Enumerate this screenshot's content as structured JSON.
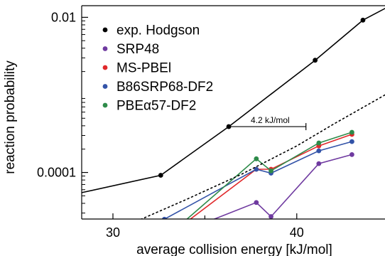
{
  "chart_data": {
    "type": "line",
    "xlabel": "average collision energy [kJ/mol]",
    "ylabel": "reaction probability",
    "xlim": [
      28.3,
      44.8
    ],
    "ylim_log10": [
      -4.6,
      -1.85
    ],
    "y_scale": "log",
    "x_ticks": [
      30,
      40
    ],
    "x_ticks_minor": [
      35
    ],
    "y_ticks": [
      {
        "value": 0.01,
        "label": "0.01"
      },
      {
        "value": 0.0001,
        "label": "0.0001"
      }
    ],
    "legend_placement": "top-left",
    "grid": false,
    "series": [
      {
        "name": "exp. Hodgson",
        "color": "#000000",
        "style": "solid",
        "x": [
          28.3,
          32.6,
          36.3,
          41.0,
          43.6,
          44.8
        ],
        "y": [
          5.5e-05,
          9.2e-05,
          0.00039,
          0.0028,
          0.0092,
          0.013
        ],
        "markers": [
          false,
          true,
          true,
          true,
          true,
          false
        ]
      },
      {
        "name": "SRP48",
        "color": "#6f3aa0",
        "style": "solid",
        "x": [
          32.8,
          37.8,
          38.6,
          41.2,
          43.0
        ],
        "y": [
          1.4e-05,
          4.1e-05,
          2.7e-05,
          0.00013,
          0.00017
        ],
        "markers": [
          true,
          true,
          true,
          true,
          true
        ]
      },
      {
        "name": "MS-PBEl",
        "color": "#e0292b",
        "style": "solid",
        "x": [
          32.8,
          37.8,
          38.6,
          41.2,
          43.0
        ],
        "y": [
          1.4e-05,
          0.00011,
          0.00011,
          0.00022,
          0.00031
        ],
        "markers": [
          true,
          true,
          true,
          true,
          true
        ]
      },
      {
        "name": "B86SRP68-DF2",
        "color": "#3353a8",
        "style": "solid",
        "x": [
          32.8,
          37.8,
          38.6,
          41.2,
          43.0
        ],
        "y": [
          2.5e-05,
          0.00011,
          9.8e-05,
          0.00019,
          0.00025
        ],
        "markers": [
          true,
          true,
          true,
          true,
          true
        ]
      },
      {
        "name": "PBEα57-DF2",
        "color": "#2e8b4a",
        "style": "solid",
        "x": [
          32.8,
          37.8,
          38.6,
          41.2,
          43.0
        ],
        "y": [
          1.4e-05,
          0.00015,
          0.000105,
          0.00024,
          0.00033
        ],
        "markers": [
          true,
          true,
          true,
          true,
          true
        ]
      },
      {
        "name": "",
        "color": "#000000",
        "style": "dotted",
        "x": [
          28.3,
          31.0,
          34.0,
          37.0,
          40.0,
          42.0,
          44.8
        ],
        "y": [
          1.2e-05,
          2.2e-05,
          4.5e-05,
          9.5e-05,
          0.00022,
          0.00042,
          0.001
        ],
        "markers": [
          false,
          false,
          false,
          false,
          false,
          false,
          false
        ]
      }
    ],
    "annotations": [
      {
        "text": "4.2 kJ/mol",
        "x_from": 36.3,
        "x_to": 40.5,
        "y": 0.00039
      }
    ]
  }
}
